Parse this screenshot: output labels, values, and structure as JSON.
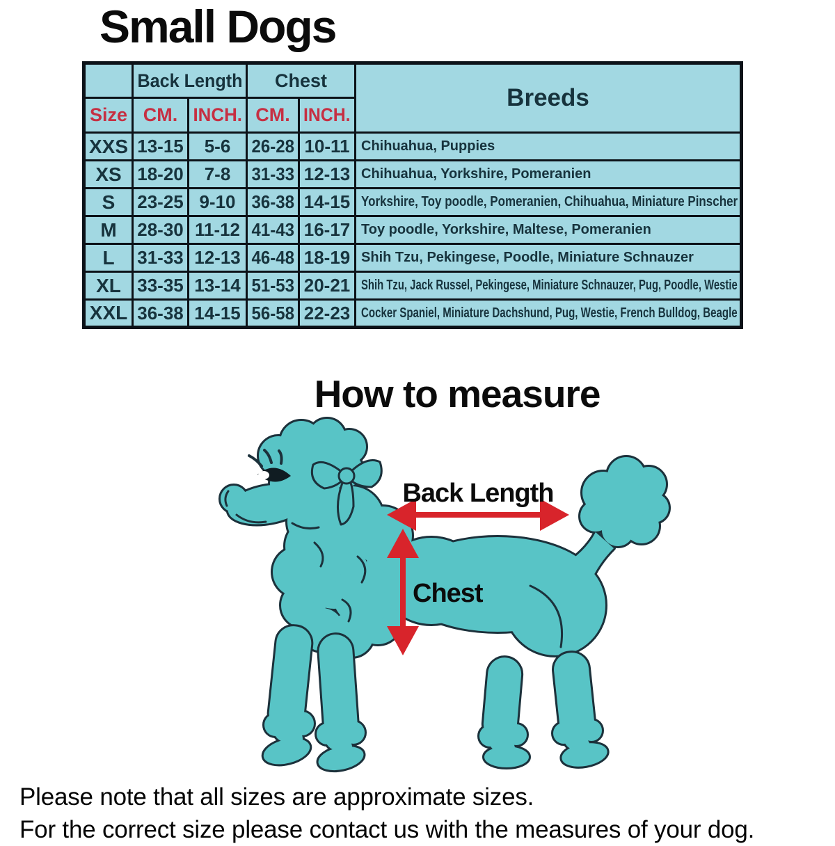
{
  "title": "Small Dogs",
  "table": {
    "header_groups": {
      "back_length": "Back Length",
      "chest": "Chest",
      "breeds": "Breeds"
    },
    "subheader": {
      "size": "Size",
      "back_cm": "CM.",
      "back_inch": "INCH.",
      "chest_cm": "CM.",
      "chest_inch": "INCH."
    },
    "rows": [
      {
        "size": "XXS",
        "back_cm": "13-15",
        "back_inch": "5-6",
        "chest_cm": "26-28",
        "chest_inch": "10-11",
        "breeds": "Chihuahua, Puppies"
      },
      {
        "size": "XS",
        "back_cm": "18-20",
        "back_inch": "7-8",
        "chest_cm": "31-33",
        "chest_inch": "12-13",
        "breeds": "Chihuahua, Yorkshire, Pomeranien"
      },
      {
        "size": "S",
        "back_cm": "23-25",
        "back_inch": "9-10",
        "chest_cm": "36-38",
        "chest_inch": "14-15",
        "breeds": "Yorkshire, Toy poodle, Pomeranien, Chihuahua, Miniature Pinscher"
      },
      {
        "size": "M",
        "back_cm": "28-30",
        "back_inch": "11-12",
        "chest_cm": "41-43",
        "chest_inch": "16-17",
        "breeds": "Toy poodle, Yorkshire, Maltese, Pomeranien"
      },
      {
        "size": "L",
        "back_cm": "31-33",
        "back_inch": "12-13",
        "chest_cm": "46-48",
        "chest_inch": "18-19",
        "breeds": "Shih Tzu, Pekingese, Poodle, Miniature Schnauzer"
      },
      {
        "size": "XL",
        "back_cm": "33-35",
        "back_inch": "13-14",
        "chest_cm": "51-53",
        "chest_inch": "20-21",
        "breeds": "Shih Tzu, Jack Russel, Pekingese, Miniature Schnauzer, Pug, Poodle, Westie"
      },
      {
        "size": "XXL",
        "back_cm": "36-38",
        "back_inch": "14-15",
        "chest_cm": "56-58",
        "chest_inch": "22-23",
        "breeds": "Cocker Spaniel, Miniature Dachshund, Pug, Westie, French Bulldog, Beagle"
      }
    ]
  },
  "measure": {
    "heading": "How to measure",
    "back_label": "Back Length",
    "chest_label": "Chest"
  },
  "notes": {
    "line1": "Please note that all sizes are approximate sizes.",
    "line2": "For the correct size please contact us with the measures of your dog."
  },
  "colors": {
    "table_bg": "#a2d8e2",
    "header_red": "#c62f42",
    "text_navy": "#17333d",
    "dog_teal": "#58c4c6",
    "arrow_red": "#d8242b",
    "outline_dark": "#1c313b"
  }
}
